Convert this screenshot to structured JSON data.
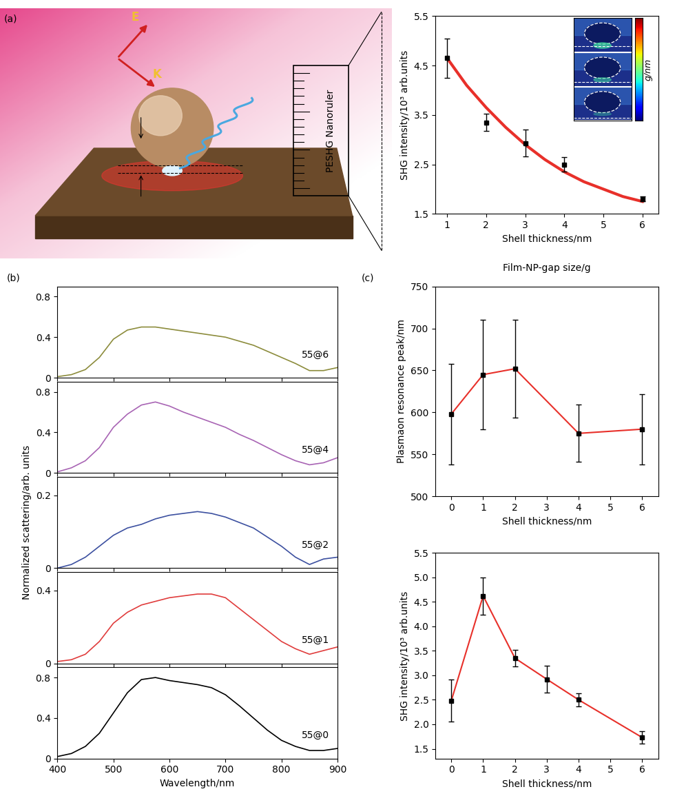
{
  "illustration": {
    "panel_label": "(a)",
    "field_label": "E",
    "wavevector_label": "K",
    "ruler_label": "PESHG Nanoruler"
  },
  "chart_data": [
    {
      "type": "line",
      "x_label": "Shell thickness/nm",
      "y_label": "SHG intensity/10³ arb.units",
      "xlim": [
        0.7,
        6.4
      ],
      "xticks": [
        1,
        2,
        3,
        4,
        5,
        6
      ],
      "ylim": [
        1.5,
        5.5
      ],
      "yticks": [
        1.5,
        2.5,
        3.5,
        4.5,
        5.5
      ],
      "grid": false,
      "annotations": [
        "Film-NP-gap size/g"
      ],
      "inset_colorbar_label": "g/nm",
      "series": [
        {
          "type": "line",
          "color": "#e8302a",
          "marker": "none",
          "x": [
            1,
            1.5,
            2,
            2.5,
            3,
            3.5,
            4,
            4.5,
            5,
            5.5,
            6
          ],
          "values": [
            4.65,
            4.1,
            3.65,
            3.25,
            2.9,
            2.6,
            2.35,
            2.15,
            2.0,
            1.85,
            1.75
          ]
        },
        {
          "type": "scatter",
          "color": "#000000",
          "marker": "s",
          "x": [
            1,
            2,
            3,
            4,
            6
          ],
          "values": [
            4.65,
            3.35,
            2.93,
            2.5,
            1.8
          ],
          "errors": [
            0.4,
            0.17,
            0.27,
            0.15,
            0.05
          ]
        }
      ]
    },
    {
      "type": "line",
      "panel_label": "(b)",
      "tick_labels": "y",
      "xlim": [
        400,
        900
      ],
      "xticks": [
        400,
        500,
        600,
        700,
        800,
        900
      ],
      "ylim": [
        0,
        0.9
      ],
      "yticks": [
        0,
        0.4,
        0.8
      ],
      "annotations": [
        "55@6"
      ],
      "series": [
        {
          "color": "#8c8c3c",
          "x": [
            400,
            425,
            450,
            475,
            500,
            525,
            550,
            575,
            600,
            625,
            650,
            675,
            700,
            725,
            750,
            775,
            800,
            825,
            850,
            875,
            900
          ],
          "values": [
            0.01,
            0.03,
            0.08,
            0.2,
            0.38,
            0.47,
            0.5,
            0.5,
            0.48,
            0.46,
            0.44,
            0.42,
            0.4,
            0.36,
            0.32,
            0.26,
            0.2,
            0.14,
            0.07,
            0.07,
            0.1
          ]
        }
      ]
    },
    {
      "type": "line",
      "tick_labels": "y",
      "xlim": [
        400,
        900
      ],
      "xticks": [
        400,
        500,
        600,
        700,
        800,
        900
      ],
      "ylim": [
        0,
        0.9
      ],
      "yticks": [
        0,
        0.4,
        0.8
      ],
      "annotations": [
        "55@4"
      ],
      "series": [
        {
          "color": "#a864b4",
          "x": [
            400,
            425,
            450,
            475,
            500,
            525,
            550,
            575,
            600,
            625,
            650,
            675,
            700,
            725,
            750,
            775,
            800,
            825,
            850,
            875,
            900
          ],
          "values": [
            0.01,
            0.05,
            0.12,
            0.25,
            0.45,
            0.58,
            0.67,
            0.7,
            0.66,
            0.6,
            0.55,
            0.5,
            0.45,
            0.38,
            0.32,
            0.25,
            0.18,
            0.12,
            0.08,
            0.1,
            0.15
          ]
        }
      ]
    },
    {
      "type": "line",
      "tick_labels": "y",
      "y_label": "Normalized scattering/arb. units",
      "xlim": [
        400,
        900
      ],
      "xticks": [
        400,
        500,
        600,
        700,
        800,
        900
      ],
      "ylim": [
        0,
        0.25
      ],
      "yticks": [
        0,
        0.2
      ],
      "annotations": [
        "55@2"
      ],
      "series": [
        {
          "color": "#3c50a0",
          "x": [
            400,
            425,
            450,
            475,
            500,
            525,
            550,
            575,
            600,
            625,
            650,
            675,
            700,
            725,
            750,
            775,
            800,
            825,
            850,
            875,
            900
          ],
          "values": [
            0.0,
            0.01,
            0.03,
            0.06,
            0.09,
            0.11,
            0.12,
            0.135,
            0.145,
            0.15,
            0.155,
            0.15,
            0.14,
            0.125,
            0.11,
            0.085,
            0.06,
            0.03,
            0.01,
            0.025,
            0.03
          ]
        }
      ]
    },
    {
      "type": "line",
      "tick_labels": "y",
      "xlim": [
        400,
        900
      ],
      "xticks": [
        400,
        500,
        600,
        700,
        800,
        900
      ],
      "ylim": [
        0,
        0.5
      ],
      "yticks": [
        0,
        0.4
      ],
      "annotations": [
        "55@1"
      ],
      "series": [
        {
          "color": "#e03c3c",
          "x": [
            400,
            425,
            450,
            475,
            500,
            525,
            550,
            575,
            600,
            625,
            650,
            675,
            700,
            725,
            750,
            775,
            800,
            825,
            850,
            875,
            900
          ],
          "values": [
            0.01,
            0.02,
            0.05,
            0.12,
            0.22,
            0.28,
            0.32,
            0.34,
            0.36,
            0.37,
            0.38,
            0.38,
            0.36,
            0.3,
            0.24,
            0.18,
            0.12,
            0.08,
            0.05,
            0.07,
            0.09
          ]
        }
      ]
    },
    {
      "type": "line",
      "x_label": "Wavelength/nm",
      "xlim": [
        400,
        900
      ],
      "xticks": [
        400,
        500,
        600,
        700,
        800,
        900
      ],
      "ylim": [
        0,
        0.9
      ],
      "yticks": [
        0,
        0.4,
        0.8
      ],
      "annotations": [
        "55@0"
      ],
      "series": [
        {
          "color": "#000000",
          "x": [
            400,
            425,
            450,
            475,
            500,
            525,
            550,
            575,
            600,
            625,
            650,
            675,
            700,
            725,
            750,
            775,
            800,
            825,
            850,
            875,
            900
          ],
          "values": [
            0.02,
            0.05,
            0.12,
            0.25,
            0.45,
            0.65,
            0.78,
            0.8,
            0.77,
            0.75,
            0.73,
            0.7,
            0.63,
            0.52,
            0.4,
            0.28,
            0.18,
            0.12,
            0.08,
            0.08,
            0.1
          ]
        }
      ]
    },
    {
      "type": "line",
      "panel_label": "(c)",
      "x_label": "Shell thickness/nm",
      "y_label": "Plasmaon resonance peak/nm",
      "xlim": [
        -0.5,
        6.5
      ],
      "xticks": [
        0,
        1,
        2,
        3,
        4,
        5,
        6
      ],
      "ylim": [
        500,
        750
      ],
      "yticks": [
        500,
        550,
        600,
        650,
        700,
        750
      ],
      "series": [
        {
          "color": "#e8302a",
          "marker": "s",
          "x": [
            0,
            1,
            2,
            4,
            6
          ],
          "values": [
            598,
            645,
            652,
            575,
            580
          ],
          "errors": [
            60,
            65,
            58,
            34,
            42
          ]
        }
      ]
    },
    {
      "type": "line",
      "x_label": "Shell thickness/nm",
      "y_label": "SHG intensity/10³ arb.units",
      "xlim": [
        -0.5,
        6.5
      ],
      "xticks": [
        0,
        1,
        2,
        3,
        4,
        5,
        6
      ],
      "ylim": [
        1.3,
        5.5
      ],
      "yticks": [
        1.5,
        {
          "value": 2,
          "label": "2.0"
        },
        2.5,
        {
          "value": 3,
          "label": "3.0"
        },
        3.5,
        {
          "value": 4,
          "label": "4.0"
        },
        4.5,
        {
          "value": 5,
          "label": "5.0"
        },
        5.5
      ],
      "series": [
        {
          "color": "#e8302a",
          "marker": "s",
          "x": [
            0,
            1,
            2,
            3,
            4,
            6
          ],
          "values": [
            2.48,
            4.62,
            3.35,
            2.92,
            2.5,
            1.73
          ],
          "errors": [
            0.43,
            0.38,
            0.17,
            0.27,
            0.13,
            0.13
          ]
        }
      ]
    }
  ]
}
